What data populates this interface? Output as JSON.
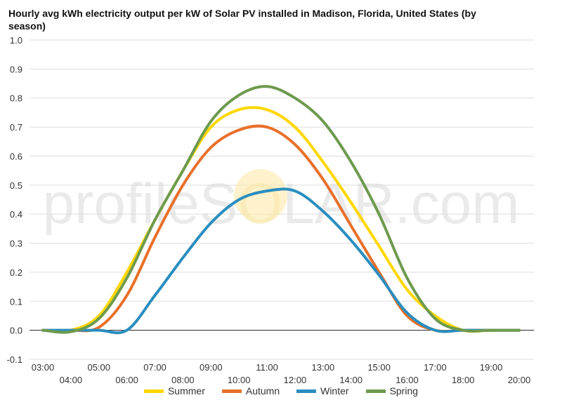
{
  "chart_data": {
    "type": "line",
    "title": "Hourly avg kWh electricity output per kW of Solar PV installed in Madison, Florida, United States (by season)",
    "watermark": "profileSOLAR.com",
    "xlabel": "",
    "ylabel": "",
    "ylim": [
      -0.1,
      1.0
    ],
    "yticks": [
      "-0.1",
      "0.0",
      "0.1",
      "0.2",
      "0.3",
      "0.4",
      "0.5",
      "0.6",
      "0.7",
      "0.8",
      "0.9",
      "1.0"
    ],
    "x": [
      "03:00",
      "04:00",
      "05:00",
      "06:00",
      "07:00",
      "08:00",
      "09:00",
      "10:00",
      "11:00",
      "12:00",
      "13:00",
      "14:00",
      "15:00",
      "16:00",
      "17:00",
      "18:00",
      "19:00",
      "20:00"
    ],
    "grid": true,
    "legend_position": "bottom",
    "series": [
      {
        "name": "Summer",
        "color": "#FFD700",
        "values": [
          0.0,
          0.0,
          0.05,
          0.2,
          0.38,
          0.55,
          0.7,
          0.76,
          0.76,
          0.7,
          0.58,
          0.44,
          0.29,
          0.14,
          0.05,
          0.0,
          0.0,
          0.0
        ]
      },
      {
        "name": "Autumn",
        "color": "#E8702A",
        "values": [
          0.0,
          0.0,
          0.01,
          0.12,
          0.32,
          0.5,
          0.63,
          0.69,
          0.7,
          0.64,
          0.52,
          0.36,
          0.2,
          0.05,
          0.0,
          0.0,
          0.0,
          0.0
        ]
      },
      {
        "name": "Winter",
        "color": "#2A8EBF",
        "values": [
          0.0,
          0.0,
          0.0,
          0.0,
          0.12,
          0.25,
          0.37,
          0.45,
          0.48,
          0.48,
          0.41,
          0.31,
          0.19,
          0.06,
          0.0,
          0.0,
          0.0,
          0.0
        ]
      },
      {
        "name": "Spring",
        "color": "#6E9A4E",
        "values": [
          0.0,
          -0.005,
          0.04,
          0.18,
          0.38,
          0.55,
          0.72,
          0.81,
          0.84,
          0.8,
          0.72,
          0.58,
          0.4,
          0.18,
          0.04,
          0.0,
          0.0,
          0.0
        ]
      }
    ]
  }
}
